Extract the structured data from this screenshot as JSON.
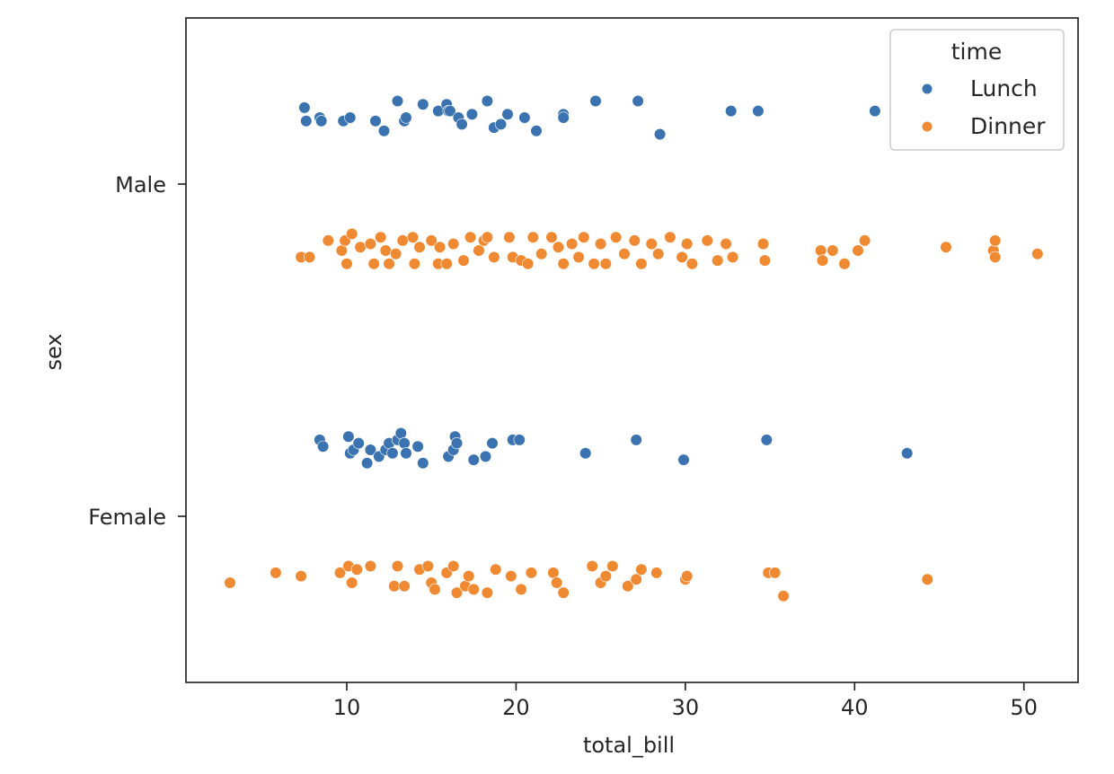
{
  "chart_data": {
    "type": "scatter",
    "subtype": "stripplot",
    "title": "",
    "xlabel": "total_bill",
    "ylabel": "sex",
    "xlim": [
      0.5,
      53.2
    ],
    "xticks": [
      10,
      20,
      30,
      40,
      50
    ],
    "categories": [
      "Male",
      "Female"
    ],
    "grid": false,
    "legend": {
      "title": "time",
      "location": "top-right",
      "entries": [
        "Lunch",
        "Dinner"
      ]
    },
    "colors": {
      "Lunch": "#3a73b0",
      "Dinner": "#f08a32"
    },
    "series": [
      {
        "name": "Lunch",
        "points": [
          {
            "x": 7.5,
            "y": "Male",
            "j": -0.23
          },
          {
            "x": 7.6,
            "y": "Male",
            "j": -0.19
          },
          {
            "x": 8.4,
            "y": "Male",
            "j": -0.2
          },
          {
            "x": 8.5,
            "y": "Male",
            "j": -0.19
          },
          {
            "x": 9.8,
            "y": "Male",
            "j": -0.19
          },
          {
            "x": 10.2,
            "y": "Male",
            "j": -0.2
          },
          {
            "x": 11.7,
            "y": "Male",
            "j": -0.19
          },
          {
            "x": 12.2,
            "y": "Male",
            "j": -0.16
          },
          {
            "x": 13.0,
            "y": "Male",
            "j": -0.25
          },
          {
            "x": 13.4,
            "y": "Male",
            "j": -0.19
          },
          {
            "x": 13.5,
            "y": "Male",
            "j": -0.2
          },
          {
            "x": 14.5,
            "y": "Male",
            "j": -0.24
          },
          {
            "x": 15.4,
            "y": "Male",
            "j": -0.22
          },
          {
            "x": 15.9,
            "y": "Male",
            "j": -0.24
          },
          {
            "x": 16.0,
            "y": "Male",
            "j": -0.22
          },
          {
            "x": 16.1,
            "y": "Male",
            "j": -0.22
          },
          {
            "x": 16.6,
            "y": "Male",
            "j": -0.2
          },
          {
            "x": 16.8,
            "y": "Male",
            "j": -0.18
          },
          {
            "x": 17.4,
            "y": "Male",
            "j": -0.21
          },
          {
            "x": 18.3,
            "y": "Male",
            "j": -0.25
          },
          {
            "x": 18.7,
            "y": "Male",
            "j": -0.17
          },
          {
            "x": 19.1,
            "y": "Male",
            "j": -0.18
          },
          {
            "x": 19.5,
            "y": "Male",
            "j": -0.21
          },
          {
            "x": 20.5,
            "y": "Male",
            "j": -0.2
          },
          {
            "x": 21.2,
            "y": "Male",
            "j": -0.16
          },
          {
            "x": 22.8,
            "y": "Male",
            "j": -0.21
          },
          {
            "x": 22.8,
            "y": "Male",
            "j": -0.2
          },
          {
            "x": 24.7,
            "y": "Male",
            "j": -0.25
          },
          {
            "x": 27.2,
            "y": "Male",
            "j": -0.25
          },
          {
            "x": 28.5,
            "y": "Male",
            "j": -0.15
          },
          {
            "x": 32.7,
            "y": "Male",
            "j": -0.22
          },
          {
            "x": 34.3,
            "y": "Male",
            "j": -0.22
          },
          {
            "x": 41.2,
            "y": "Male",
            "j": -0.22
          },
          {
            "x": 8.4,
            "y": "Female",
            "j": -0.23
          },
          {
            "x": 8.6,
            "y": "Female",
            "j": -0.21
          },
          {
            "x": 10.1,
            "y": "Female",
            "j": -0.24
          },
          {
            "x": 10.2,
            "y": "Female",
            "j": -0.19
          },
          {
            "x": 10.4,
            "y": "Female",
            "j": -0.2
          },
          {
            "x": 10.7,
            "y": "Female",
            "j": -0.22
          },
          {
            "x": 11.2,
            "y": "Female",
            "j": -0.16
          },
          {
            "x": 11.4,
            "y": "Female",
            "j": -0.2
          },
          {
            "x": 11.9,
            "y": "Female",
            "j": -0.18
          },
          {
            "x": 12.3,
            "y": "Female",
            "j": -0.2
          },
          {
            "x": 12.5,
            "y": "Female",
            "j": -0.22
          },
          {
            "x": 12.7,
            "y": "Female",
            "j": -0.19
          },
          {
            "x": 13.0,
            "y": "Female",
            "j": -0.23
          },
          {
            "x": 13.2,
            "y": "Female",
            "j": -0.25
          },
          {
            "x": 13.4,
            "y": "Female",
            "j": -0.22
          },
          {
            "x": 13.5,
            "y": "Female",
            "j": -0.19
          },
          {
            "x": 14.2,
            "y": "Female",
            "j": -0.21
          },
          {
            "x": 14.5,
            "y": "Female",
            "j": -0.16
          },
          {
            "x": 16.0,
            "y": "Female",
            "j": -0.18
          },
          {
            "x": 16.3,
            "y": "Female",
            "j": -0.2
          },
          {
            "x": 16.4,
            "y": "Female",
            "j": -0.24
          },
          {
            "x": 16.5,
            "y": "Female",
            "j": -0.22
          },
          {
            "x": 17.5,
            "y": "Female",
            "j": -0.17
          },
          {
            "x": 18.2,
            "y": "Female",
            "j": -0.18
          },
          {
            "x": 18.6,
            "y": "Female",
            "j": -0.22
          },
          {
            "x": 19.8,
            "y": "Female",
            "j": -0.23
          },
          {
            "x": 20.2,
            "y": "Female",
            "j": -0.23
          },
          {
            "x": 24.1,
            "y": "Female",
            "j": -0.19
          },
          {
            "x": 27.1,
            "y": "Female",
            "j": -0.23
          },
          {
            "x": 29.9,
            "y": "Female",
            "j": -0.17
          },
          {
            "x": 34.8,
            "y": "Female",
            "j": -0.23
          },
          {
            "x": 43.1,
            "y": "Female",
            "j": -0.19
          }
        ]
      },
      {
        "name": "Dinner",
        "points": [
          {
            "x": 7.3,
            "y": "Male",
            "j": 0.22
          },
          {
            "x": 7.8,
            "y": "Male",
            "j": 0.22
          },
          {
            "x": 8.9,
            "y": "Male",
            "j": 0.17
          },
          {
            "x": 9.7,
            "y": "Male",
            "j": 0.2
          },
          {
            "x": 9.9,
            "y": "Male",
            "j": 0.17
          },
          {
            "x": 10.0,
            "y": "Male",
            "j": 0.24
          },
          {
            "x": 10.3,
            "y": "Male",
            "j": 0.15
          },
          {
            "x": 10.8,
            "y": "Male",
            "j": 0.19
          },
          {
            "x": 11.4,
            "y": "Male",
            "j": 0.18
          },
          {
            "x": 11.6,
            "y": "Male",
            "j": 0.24
          },
          {
            "x": 12.0,
            "y": "Male",
            "j": 0.16
          },
          {
            "x": 12.3,
            "y": "Male",
            "j": 0.2
          },
          {
            "x": 12.5,
            "y": "Male",
            "j": 0.24
          },
          {
            "x": 12.9,
            "y": "Male",
            "j": 0.21
          },
          {
            "x": 13.3,
            "y": "Male",
            "j": 0.17
          },
          {
            "x": 13.9,
            "y": "Male",
            "j": 0.16
          },
          {
            "x": 14.0,
            "y": "Male",
            "j": 0.24
          },
          {
            "x": 14.3,
            "y": "Male",
            "j": 0.19
          },
          {
            "x": 15.0,
            "y": "Male",
            "j": 0.17
          },
          {
            "x": 15.4,
            "y": "Male",
            "j": 0.24
          },
          {
            "x": 15.5,
            "y": "Male",
            "j": 0.19
          },
          {
            "x": 15.9,
            "y": "Male",
            "j": 0.24
          },
          {
            "x": 16.3,
            "y": "Male",
            "j": 0.18
          },
          {
            "x": 16.9,
            "y": "Male",
            "j": 0.23
          },
          {
            "x": 17.3,
            "y": "Male",
            "j": 0.16
          },
          {
            "x": 17.8,
            "y": "Male",
            "j": 0.2
          },
          {
            "x": 18.1,
            "y": "Male",
            "j": 0.17
          },
          {
            "x": 18.3,
            "y": "Male",
            "j": 0.16
          },
          {
            "x": 18.7,
            "y": "Male",
            "j": 0.22
          },
          {
            "x": 19.6,
            "y": "Male",
            "j": 0.16
          },
          {
            "x": 19.8,
            "y": "Male",
            "j": 0.22
          },
          {
            "x": 20.3,
            "y": "Male",
            "j": 0.23
          },
          {
            "x": 20.7,
            "y": "Male",
            "j": 0.24
          },
          {
            "x": 21.0,
            "y": "Male",
            "j": 0.16
          },
          {
            "x": 21.5,
            "y": "Male",
            "j": 0.21
          },
          {
            "x": 22.1,
            "y": "Male",
            "j": 0.16
          },
          {
            "x": 22.5,
            "y": "Male",
            "j": 0.19
          },
          {
            "x": 22.8,
            "y": "Male",
            "j": 0.24
          },
          {
            "x": 23.3,
            "y": "Male",
            "j": 0.18
          },
          {
            "x": 23.7,
            "y": "Male",
            "j": 0.22
          },
          {
            "x": 24.0,
            "y": "Male",
            "j": 0.16
          },
          {
            "x": 24.6,
            "y": "Male",
            "j": 0.24
          },
          {
            "x": 25.0,
            "y": "Male",
            "j": 0.18
          },
          {
            "x": 25.3,
            "y": "Male",
            "j": 0.24
          },
          {
            "x": 25.9,
            "y": "Male",
            "j": 0.16
          },
          {
            "x": 26.4,
            "y": "Male",
            "j": 0.21
          },
          {
            "x": 27.0,
            "y": "Male",
            "j": 0.17
          },
          {
            "x": 27.4,
            "y": "Male",
            "j": 0.24
          },
          {
            "x": 28.0,
            "y": "Male",
            "j": 0.18
          },
          {
            "x": 28.4,
            "y": "Male",
            "j": 0.21
          },
          {
            "x": 29.1,
            "y": "Male",
            "j": 0.16
          },
          {
            "x": 29.8,
            "y": "Male",
            "j": 0.22
          },
          {
            "x": 30.1,
            "y": "Male",
            "j": 0.18
          },
          {
            "x": 30.4,
            "y": "Male",
            "j": 0.24
          },
          {
            "x": 31.3,
            "y": "Male",
            "j": 0.17
          },
          {
            "x": 31.9,
            "y": "Male",
            "j": 0.23
          },
          {
            "x": 32.4,
            "y": "Male",
            "j": 0.18
          },
          {
            "x": 32.8,
            "y": "Male",
            "j": 0.22
          },
          {
            "x": 34.6,
            "y": "Male",
            "j": 0.18
          },
          {
            "x": 34.7,
            "y": "Male",
            "j": 0.23
          },
          {
            "x": 38.0,
            "y": "Male",
            "j": 0.2
          },
          {
            "x": 38.1,
            "y": "Male",
            "j": 0.23
          },
          {
            "x": 38.7,
            "y": "Male",
            "j": 0.2
          },
          {
            "x": 39.4,
            "y": "Male",
            "j": 0.24
          },
          {
            "x": 40.2,
            "y": "Male",
            "j": 0.2
          },
          {
            "x": 40.6,
            "y": "Male",
            "j": 0.17
          },
          {
            "x": 45.4,
            "y": "Male",
            "j": 0.19
          },
          {
            "x": 48.2,
            "y": "Male",
            "j": 0.2
          },
          {
            "x": 48.3,
            "y": "Male",
            "j": 0.17
          },
          {
            "x": 48.3,
            "y": "Male",
            "j": 0.22
          },
          {
            "x": 50.8,
            "y": "Male",
            "j": 0.21
          },
          {
            "x": 3.1,
            "y": "Female",
            "j": 0.2
          },
          {
            "x": 5.8,
            "y": "Female",
            "j": 0.17
          },
          {
            "x": 7.3,
            "y": "Female",
            "j": 0.18
          },
          {
            "x": 9.6,
            "y": "Female",
            "j": 0.17
          },
          {
            "x": 10.1,
            "y": "Female",
            "j": 0.15
          },
          {
            "x": 10.3,
            "y": "Female",
            "j": 0.2
          },
          {
            "x": 10.6,
            "y": "Female",
            "j": 0.16
          },
          {
            "x": 11.4,
            "y": "Female",
            "j": 0.15
          },
          {
            "x": 12.8,
            "y": "Female",
            "j": 0.21
          },
          {
            "x": 13.0,
            "y": "Female",
            "j": 0.15
          },
          {
            "x": 13.4,
            "y": "Female",
            "j": 0.21
          },
          {
            "x": 14.3,
            "y": "Female",
            "j": 0.16
          },
          {
            "x": 14.8,
            "y": "Female",
            "j": 0.15
          },
          {
            "x": 15.0,
            "y": "Female",
            "j": 0.2
          },
          {
            "x": 15.2,
            "y": "Female",
            "j": 0.22
          },
          {
            "x": 15.9,
            "y": "Female",
            "j": 0.17
          },
          {
            "x": 16.3,
            "y": "Female",
            "j": 0.15
          },
          {
            "x": 16.5,
            "y": "Female",
            "j": 0.23
          },
          {
            "x": 17.0,
            "y": "Female",
            "j": 0.21
          },
          {
            "x": 17.2,
            "y": "Female",
            "j": 0.18
          },
          {
            "x": 17.5,
            "y": "Female",
            "j": 0.22
          },
          {
            "x": 18.3,
            "y": "Female",
            "j": 0.23
          },
          {
            "x": 18.8,
            "y": "Female",
            "j": 0.16
          },
          {
            "x": 19.7,
            "y": "Female",
            "j": 0.18
          },
          {
            "x": 20.3,
            "y": "Female",
            "j": 0.22
          },
          {
            "x": 20.9,
            "y": "Female",
            "j": 0.17
          },
          {
            "x": 22.2,
            "y": "Female",
            "j": 0.17
          },
          {
            "x": 22.4,
            "y": "Female",
            "j": 0.2
          },
          {
            "x": 22.8,
            "y": "Female",
            "j": 0.23
          },
          {
            "x": 24.5,
            "y": "Female",
            "j": 0.15
          },
          {
            "x": 25.0,
            "y": "Female",
            "j": 0.2
          },
          {
            "x": 25.3,
            "y": "Female",
            "j": 0.18
          },
          {
            "x": 25.7,
            "y": "Female",
            "j": 0.15
          },
          {
            "x": 26.6,
            "y": "Female",
            "j": 0.21
          },
          {
            "x": 27.1,
            "y": "Female",
            "j": 0.19
          },
          {
            "x": 27.4,
            "y": "Female",
            "j": 0.16
          },
          {
            "x": 28.3,
            "y": "Female",
            "j": 0.17
          },
          {
            "x": 30.0,
            "y": "Female",
            "j": 0.19
          },
          {
            "x": 30.1,
            "y": "Female",
            "j": 0.18
          },
          {
            "x": 34.9,
            "y": "Female",
            "j": 0.17
          },
          {
            "x": 35.3,
            "y": "Female",
            "j": 0.17
          },
          {
            "x": 35.8,
            "y": "Female",
            "j": 0.24
          },
          {
            "x": 44.3,
            "y": "Female",
            "j": 0.19
          }
        ]
      }
    ]
  }
}
